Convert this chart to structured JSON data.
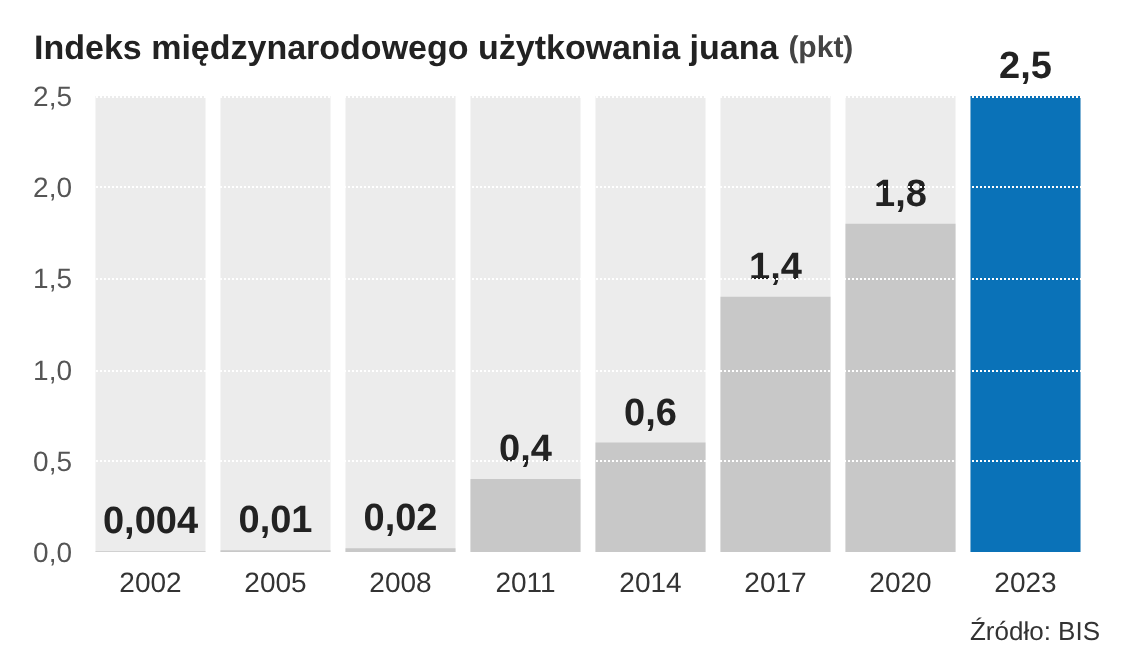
{
  "chart_data": {
    "type": "bar",
    "title": "Indeks międzynarodowego użytkowania juana",
    "subtitle": "(pkt)",
    "categories": [
      "2002",
      "2005",
      "2008",
      "2011",
      "2014",
      "2017",
      "2020",
      "2023"
    ],
    "values": [
      0.004,
      0.01,
      0.02,
      0.4,
      0.6,
      1.4,
      1.8,
      2.5
    ],
    "colors": [
      "#c8c8c8",
      "#c8c8c8",
      "#c8c8c8",
      "#c8c8c8",
      "#c8c8c8",
      "#c8c8c8",
      "#c8c8c8",
      "#0a72b8"
    ],
    "value_labels": [
      "0,004",
      "0,01",
      "0,02",
      "0,4",
      "0,6",
      "1,4",
      "1,8",
      "2,5"
    ],
    "ylim": [
      0,
      2.5
    ],
    "yticks": [
      {
        "value": 0,
        "label": "0,0"
      },
      {
        "value": 0.5,
        "label": "0,5"
      },
      {
        "value": 1,
        "label": "1,0"
      },
      {
        "value": 1.5,
        "label": "1,5"
      },
      {
        "value": 2,
        "label": "2,0"
      },
      {
        "value": 2.5,
        "label": "2,5"
      }
    ],
    "grid": "y",
    "annotations": [
      "Źródło: BIS"
    ]
  }
}
